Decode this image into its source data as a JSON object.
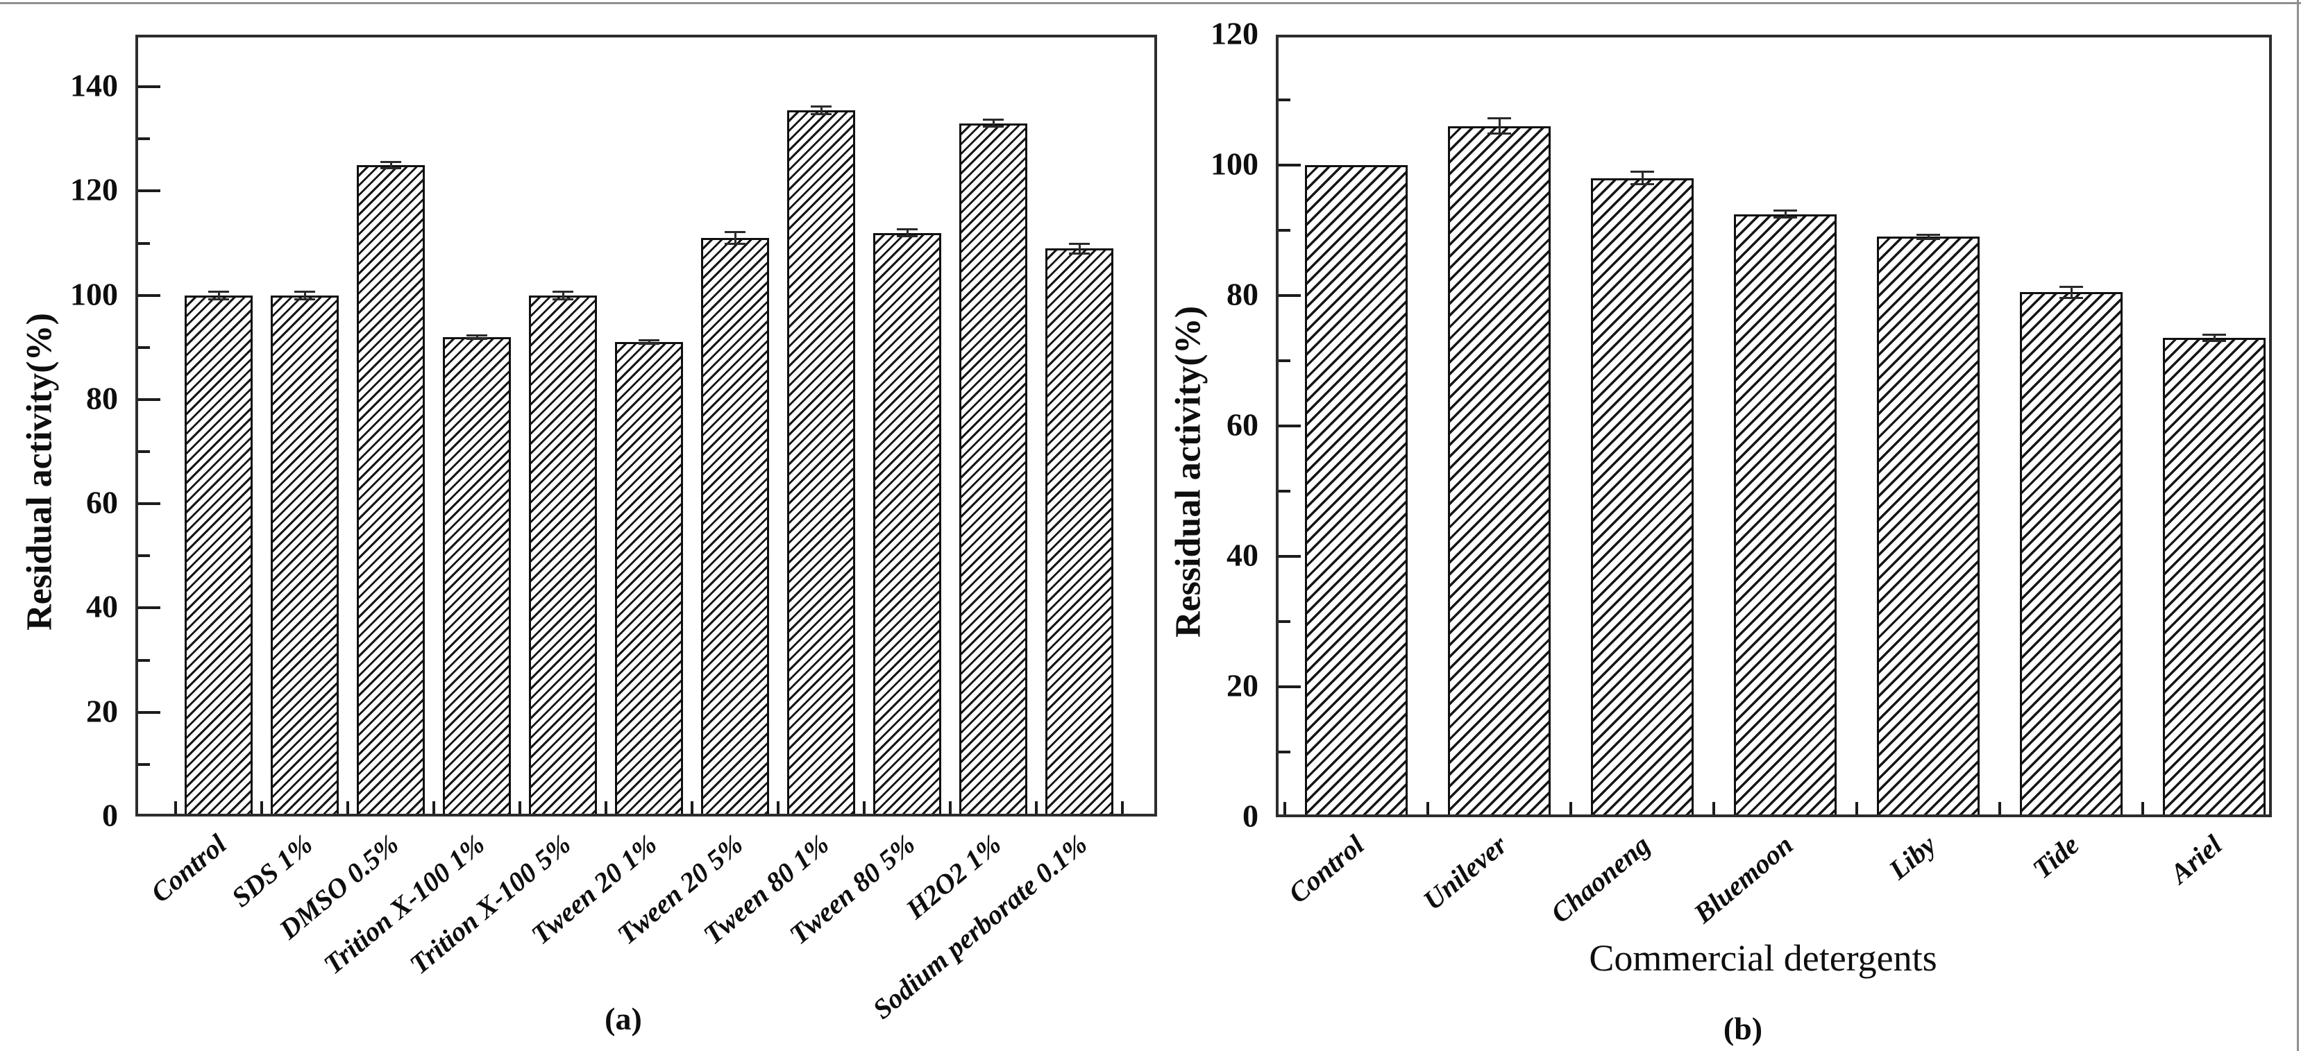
{
  "figure_caption_left": "(a)",
  "figure_caption_right": "(b)",
  "chart_data": [
    {
      "id": "a",
      "type": "bar",
      "caption": "(a)",
      "title": "",
      "ylabel": "Residual activity(%)",
      "xlabel": "",
      "categories": [
        "Control",
        "SDS 1%",
        "DMSO 0.5%",
        "Trition X-100 1%",
        "Trition X-100 5%",
        "Tween 20 1%",
        "Tween 20 5%",
        "Tween 80 1%",
        "Tween 80 5%",
        "H2O2 1%",
        "Sodium perborate 0.1%"
      ],
      "values": [
        100,
        100,
        125,
        92,
        100,
        91,
        111,
        135.5,
        112,
        133,
        109
      ],
      "errors": [
        0.8,
        0.8,
        0.7,
        0.4,
        0.8,
        0.4,
        1.2,
        0.8,
        0.7,
        0.7,
        1.0
      ],
      "ylim": [
        0,
        150
      ],
      "ytick_labels": [
        "0",
        "20",
        "40",
        "60",
        "80",
        "100",
        "120",
        "140"
      ],
      "minor_tick_step": 10,
      "grid": false,
      "legend": "none",
      "bar_fill": "#ffffff",
      "hatch_color": "#161616",
      "hatch_pattern": "diagonal-forward-slash",
      "axis_color": "#2d2d2d",
      "label_rotation_deg": -40
    },
    {
      "id": "b",
      "type": "bar",
      "caption": "(b)",
      "title": "",
      "ylabel": "Ressidual activity(%)",
      "xlabel": "Commercial detergents",
      "categories": [
        "Control",
        "Unilever",
        "Chaoneng",
        "Bluemoon",
        "Liby",
        "Tide",
        "Ariel"
      ],
      "values": [
        100,
        106,
        98,
        92.5,
        89,
        80.5,
        73.5
      ],
      "errors": [
        0,
        1.2,
        1.0,
        0.6,
        0.4,
        0.9,
        0.5
      ],
      "ylim": [
        0,
        120
      ],
      "ytick_labels": [
        "0",
        "20",
        "40",
        "60",
        "80",
        "100",
        "120"
      ],
      "minor_tick_step": 10,
      "grid": false,
      "legend": "none",
      "bar_fill": "#ffffff",
      "hatch_color": "#161616",
      "hatch_pattern": "diagonal-forward-slash",
      "axis_color": "#2d2d2d",
      "label_rotation_deg": -40
    }
  ]
}
